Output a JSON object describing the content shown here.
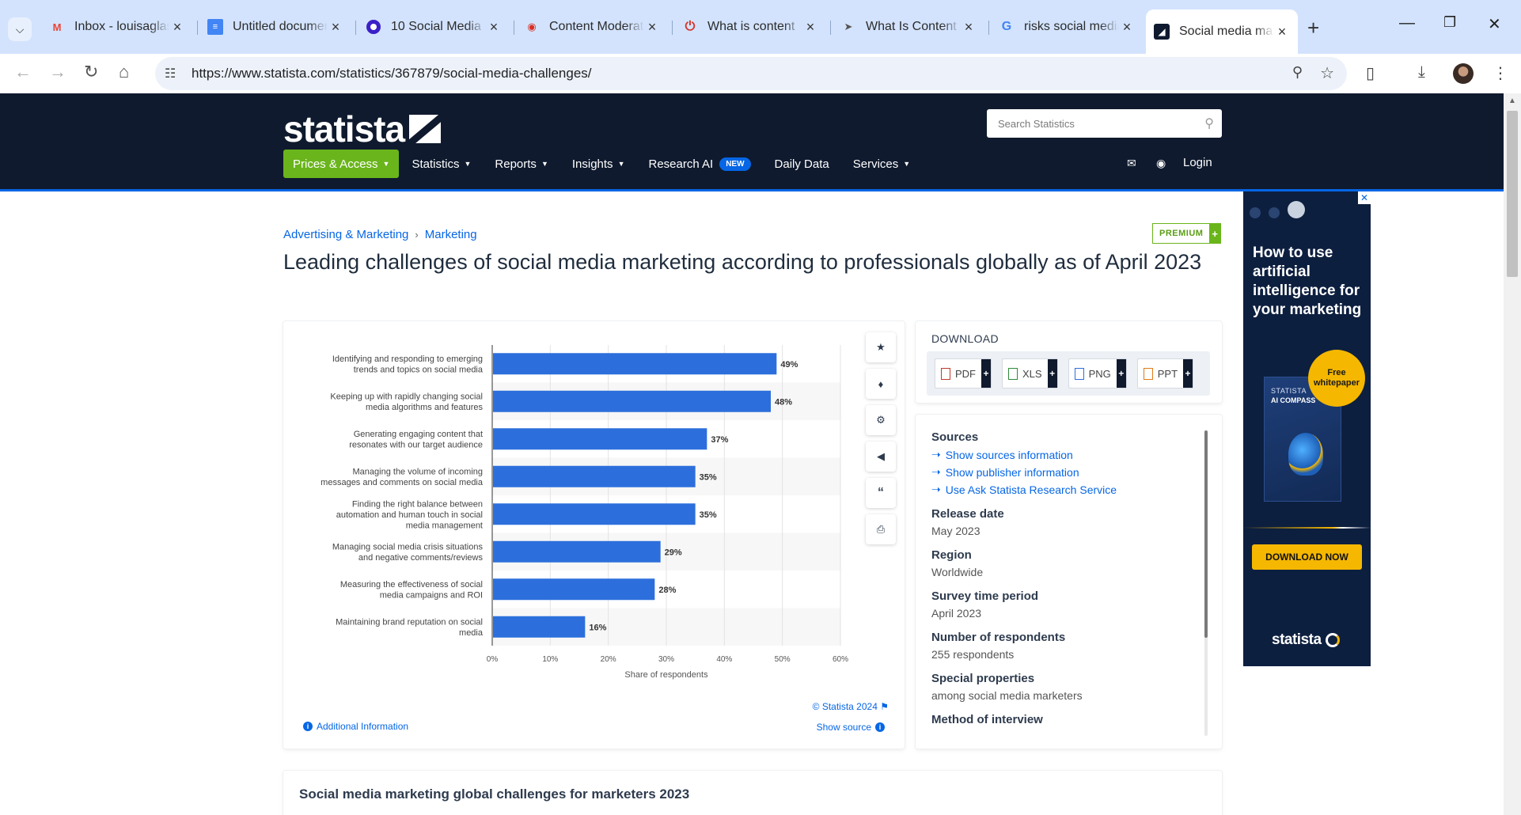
{
  "browser": {
    "tabs": [
      {
        "title": "Inbox - louisaglaser",
        "favicon": "gmail-icon"
      },
      {
        "title": "Untitled document",
        "favicon": "docs-icon"
      },
      {
        "title": "10 Social Media",
        "favicon": "circle-icon"
      },
      {
        "title": "Content Moderation",
        "favicon": "owl-icon"
      },
      {
        "title": "What is content",
        "favicon": "power-icon"
      },
      {
        "title": "What Is Content",
        "favicon": "arrow-icon"
      },
      {
        "title": "risks social media",
        "favicon": "google-icon"
      },
      {
        "title": "Social media marketing",
        "favicon": "statista-icon"
      }
    ],
    "url": "https://www.statista.com/statistics/367879/social-media-challenges/"
  },
  "site": {
    "logo_text": "statista",
    "search_placeholder": "Search Statistics",
    "nav": {
      "prices": "Prices & Access",
      "statistics": "Statistics",
      "reports": "Reports",
      "insights": "Insights",
      "research_ai": "Research AI",
      "new_badge": "NEW",
      "daily_data": "Daily Data",
      "services": "Services",
      "login": "Login"
    }
  },
  "page": {
    "breadcrumb": [
      "Advertising & Marketing",
      "Marketing"
    ],
    "premium_label": "PREMIUM",
    "title": "Leading challenges of social media marketing according to professionals globally as of April 2023",
    "copyright": "© Statista 2024",
    "additional_info": "Additional Information",
    "show_source": "Show source"
  },
  "chart_data": {
    "type": "bar",
    "orientation": "horizontal",
    "categories": [
      "Identifying and responding to emerging trends and topics on social media",
      "Keeping up with rapidly changing social media algorithms and features",
      "Generating engaging content that resonates with our target audience",
      "Managing the volume of incoming messages and comments on social media",
      "Finding the right balance between automation and human touch in social media management",
      "Managing social media crisis situations and negative comments/reviews",
      "Measuring the effectiveness of social media campaigns and ROI",
      "Maintaining brand reputation on social media"
    ],
    "category_lines": [
      [
        "Identifying and responding to emerging",
        "trends and topics on social media"
      ],
      [
        "Keeping up with rapidly changing social",
        "media algorithms and features"
      ],
      [
        "Generating engaging content that",
        "resonates with our target audience"
      ],
      [
        "Managing the volume of incoming",
        "messages and comments on social media"
      ],
      [
        "Finding the right balance between",
        "automation and human touch in social",
        "media management"
      ],
      [
        "Managing social media crisis situations",
        "and negative comments/reviews"
      ],
      [
        "Measuring the effectiveness of social",
        "media campaigns and ROI"
      ],
      [
        "Maintaining brand reputation on social",
        "media"
      ]
    ],
    "values": [
      49,
      48,
      37,
      35,
      35,
      29,
      28,
      16
    ],
    "value_labels": [
      "49%",
      "48%",
      "37%",
      "35%",
      "35%",
      "29%",
      "28%",
      "16%"
    ],
    "xlim": [
      0,
      60
    ],
    "xticks": [
      "0%",
      "10%",
      "20%",
      "30%",
      "40%",
      "50%",
      "60%"
    ],
    "xlabel": "Share of respondents",
    "ylabel": "",
    "title": "",
    "grid": true,
    "bar_color": "#2c6fdc"
  },
  "download": {
    "title": "DOWNLOAD",
    "formats": [
      "PDF",
      "XLS",
      "PNG",
      "PPT"
    ]
  },
  "meta": {
    "sources_label": "Sources",
    "links": [
      "Show sources information",
      "Show publisher information",
      "Use Ask Statista Research Service"
    ],
    "release_label": "Release date",
    "release_value": "May 2023",
    "region_label": "Region",
    "region_value": "Worldwide",
    "period_label": "Survey time period",
    "period_value": "April 2023",
    "respondents_label": "Number of respondents",
    "respondents_value": "255 respondents",
    "special_label": "Special properties",
    "special_value": "among social media marketers",
    "method_label": "Method of interview"
  },
  "ad": {
    "headline": "How to use artificial intelligence for your marketing",
    "badge": "Free whitepaper",
    "book_line1": "STATISTA",
    "book_line2": "AI COMPASS",
    "cta": "DOWNLOAD NOW",
    "logo": "statista"
  },
  "below": {
    "heading": "Social media marketing global challenges for marketers 2023"
  },
  "colors": {
    "header_bg": "#0f1a2e",
    "accent_blue": "#0666e5",
    "green": "#6ab51b"
  }
}
